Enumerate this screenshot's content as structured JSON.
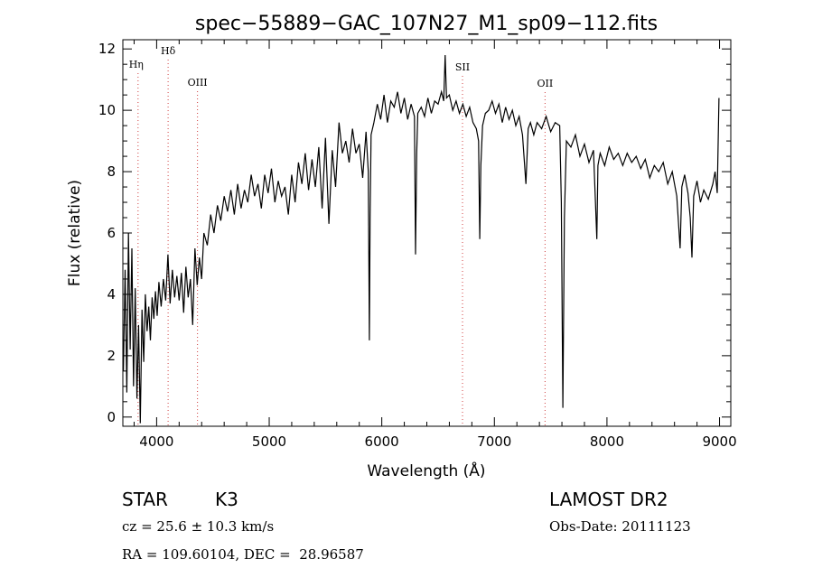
{
  "chart_data": {
    "type": "line",
    "title": "spec−55889−GAC_107N27_M1_sp09−112.fits",
    "xlabel": "Wavelength (Å)",
    "ylabel": "Flux (relative)",
    "xlim": [
      3700,
      9100
    ],
    "ylim": [
      -0.3,
      12.3
    ],
    "xticks": [
      4000,
      5000,
      6000,
      7000,
      8000,
      9000
    ],
    "yticks": [
      0,
      2,
      4,
      6,
      8,
      10,
      12
    ],
    "grid": false,
    "series": [
      {
        "x": [
          3705,
          3720,
          3735,
          3750,
          3765,
          3780,
          3795,
          3810,
          3825,
          3840,
          3855,
          3870,
          3885,
          3900,
          3915,
          3930,
          3945,
          3960,
          3975,
          3990,
          4005,
          4020,
          4040,
          4060,
          4080,
          4100,
          4120,
          4140,
          4160,
          4180,
          4200,
          4220,
          4240,
          4260,
          4280,
          4300,
          4320,
          4340,
          4360,
          4380,
          4400,
          4420,
          4450,
          4480,
          4510,
          4540,
          4570,
          4600,
          4630,
          4660,
          4690,
          4720,
          4750,
          4780,
          4810,
          4840,
          4870,
          4900,
          4930,
          4960,
          4990,
          5020,
          5050,
          5080,
          5110,
          5140,
          5170,
          5200,
          5230,
          5260,
          5290,
          5320,
          5350,
          5380,
          5410,
          5440,
          5470,
          5500,
          5530,
          5560,
          5590,
          5620,
          5650,
          5680,
          5710,
          5740,
          5770,
          5800,
          5830,
          5860,
          5880,
          5890,
          5896,
          5905,
          5930,
          5960,
          5990,
          6020,
          6050,
          6080,
          6110,
          6140,
          6170,
          6200,
          6230,
          6260,
          6290,
          6300,
          6310,
          6320,
          6350,
          6380,
          6410,
          6440,
          6470,
          6500,
          6530,
          6550,
          6563,
          6575,
          6600,
          6630,
          6660,
          6690,
          6720,
          6750,
          6780,
          6810,
          6840,
          6860,
          6870,
          6880,
          6895,
          6920,
          6950,
          6980,
          7010,
          7040,
          7070,
          7100,
          7130,
          7160,
          7190,
          7220,
          7250,
          7280,
          7300,
          7320,
          7350,
          7380,
          7420,
          7460,
          7500,
          7540,
          7580,
          7595,
          7608,
          7622,
          7640,
          7680,
          7720,
          7760,
          7800,
          7840,
          7880,
          7910,
          7920,
          7940,
          7980,
          8020,
          8060,
          8100,
          8140,
          8180,
          8220,
          8260,
          8300,
          8340,
          8380,
          8420,
          8460,
          8500,
          8540,
          8580,
          8620,
          8650,
          8665,
          8690,
          8720,
          8740,
          8755,
          8770,
          8800,
          8830,
          8860,
          8900,
          8940,
          8960,
          8980,
          8995
        ],
        "y": [
          1.5,
          4.8,
          0.8,
          6.0,
          2.2,
          5.5,
          1.0,
          4.2,
          0.6,
          3.0,
          -0.2,
          3.5,
          1.8,
          4.0,
          2.8,
          3.6,
          2.5,
          3.9,
          3.2,
          4.1,
          3.3,
          4.4,
          3.6,
          4.5,
          3.8,
          5.3,
          3.7,
          4.8,
          3.9,
          4.6,
          3.8,
          4.7,
          3.4,
          4.9,
          3.9,
          4.5,
          3.0,
          5.5,
          4.3,
          5.2,
          4.5,
          6.0,
          5.6,
          6.6,
          6.0,
          6.9,
          6.4,
          7.2,
          6.7,
          7.4,
          6.6,
          7.6,
          6.8,
          7.4,
          7.0,
          7.9,
          7.2,
          7.6,
          6.8,
          7.9,
          7.3,
          8.1,
          7.0,
          7.7,
          7.2,
          7.5,
          6.6,
          7.9,
          7.0,
          8.3,
          7.6,
          8.6,
          7.4,
          8.4,
          7.5,
          8.8,
          6.8,
          9.1,
          6.3,
          8.7,
          7.5,
          9.6,
          8.6,
          9.0,
          8.3,
          9.4,
          8.6,
          8.9,
          7.8,
          9.3,
          8.0,
          2.5,
          6.5,
          9.2,
          9.6,
          10.2,
          9.7,
          10.5,
          9.6,
          10.3,
          10.1,
          10.6,
          9.9,
          10.4,
          9.7,
          10.2,
          9.8,
          5.3,
          8.6,
          9.9,
          10.1,
          9.8,
          10.4,
          9.9,
          10.3,
          10.2,
          10.6,
          10.3,
          11.8,
          10.4,
          10.5,
          10.0,
          10.3,
          9.9,
          10.2,
          9.8,
          10.1,
          9.6,
          9.4,
          9.0,
          5.8,
          8.2,
          9.5,
          9.9,
          10.0,
          10.3,
          9.9,
          10.2,
          9.6,
          10.1,
          9.7,
          10.0,
          9.5,
          9.8,
          9.2,
          7.6,
          9.4,
          9.6,
          9.2,
          9.6,
          9.4,
          9.8,
          9.3,
          9.6,
          9.5,
          7.0,
          0.3,
          6.5,
          9.0,
          8.8,
          9.2,
          8.5,
          8.9,
          8.3,
          8.7,
          5.8,
          8.2,
          8.6,
          8.2,
          8.8,
          8.4,
          8.6,
          8.2,
          8.6,
          8.3,
          8.5,
          8.1,
          8.4,
          7.8,
          8.2,
          8.0,
          8.3,
          7.6,
          8.0,
          7.2,
          5.5,
          7.5,
          7.9,
          7.3,
          6.5,
          5.2,
          7.2,
          7.7,
          7.0,
          7.4,
          7.1,
          7.6,
          8.0,
          7.3,
          10.4
        ]
      }
    ],
    "annotations": [
      {
        "label": "Hη",
        "x": 3835
      },
      {
        "label": "Hδ",
        "x": 4102
      },
      {
        "label": "OIII",
        "x": 4363
      },
      {
        "label": "SII",
        "x": 6717
      },
      {
        "label": "OII",
        "x": 7450
      }
    ]
  },
  "info": {
    "class_label": "STAR",
    "subclass": "K3",
    "cz": "cz = 25.6 ± 10.3 km/s",
    "coords": "RA = 109.60104, DEC =  28.96587",
    "survey": "LAMOST DR2",
    "obs_date": "Obs-Date: 20111123"
  }
}
